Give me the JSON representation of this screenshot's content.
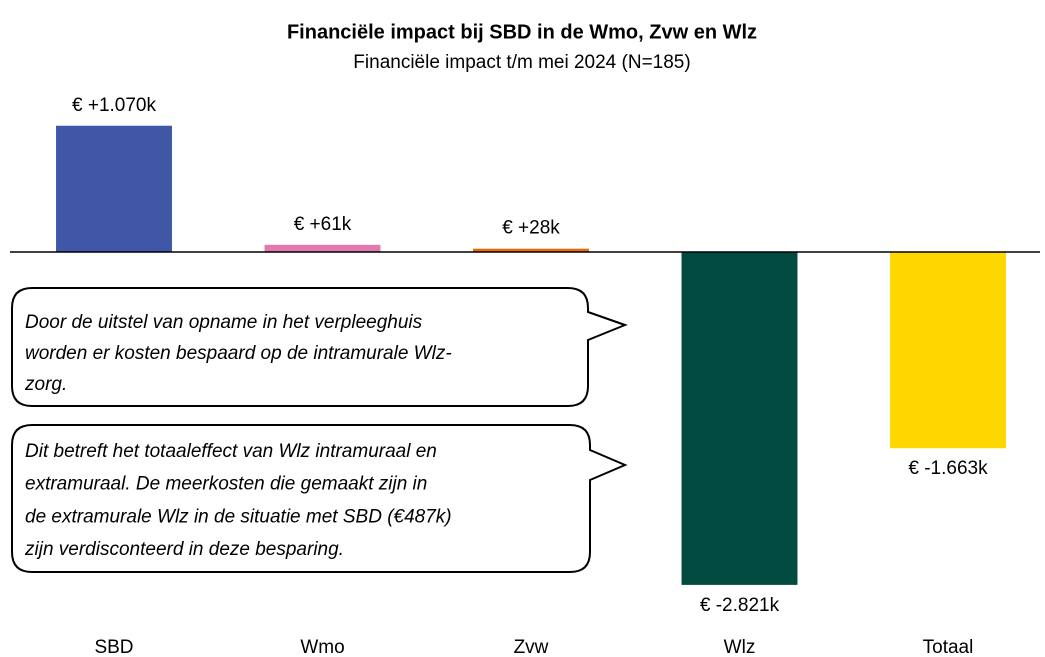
{
  "chart_data": {
    "type": "bar",
    "title": "Financiële impact bij SBD in de Wmo, Zvw en Wlz",
    "subtitle": "Financiële impact t/m mei 2024 (N=185)",
    "categories": [
      "SBD",
      "Wmo",
      "Zvw",
      "Wlz",
      "Totaal"
    ],
    "values": [
      1070,
      61,
      28,
      -2821,
      -1663
    ],
    "value_labels": [
      "€ +1.070k",
      "€ +61k",
      "€ +28k",
      "€ -2.821k",
      "€ -1.663k"
    ],
    "colors": [
      "#3f57a6",
      "#e27aad",
      "#e36c09",
      "#004a40",
      "#ffd700"
    ],
    "ylim": [
      -3400,
      1400
    ],
    "annotations": [
      {
        "lines": [
          "Door de uitstel van opname in het verpleeghuis",
          "worden er kosten bespaard op de intramurale Wlz-",
          "zorg."
        ]
      },
      {
        "lines": [
          "Dit betreft het totaaleffect van Wlz intramuraal en",
          "extramuraal. De meerkosten die gemaakt zijn in",
          "de extramurale Wlz in de situatie met SBD (€487k)",
          "zijn verdisconteerd in deze besparing."
        ]
      }
    ]
  }
}
